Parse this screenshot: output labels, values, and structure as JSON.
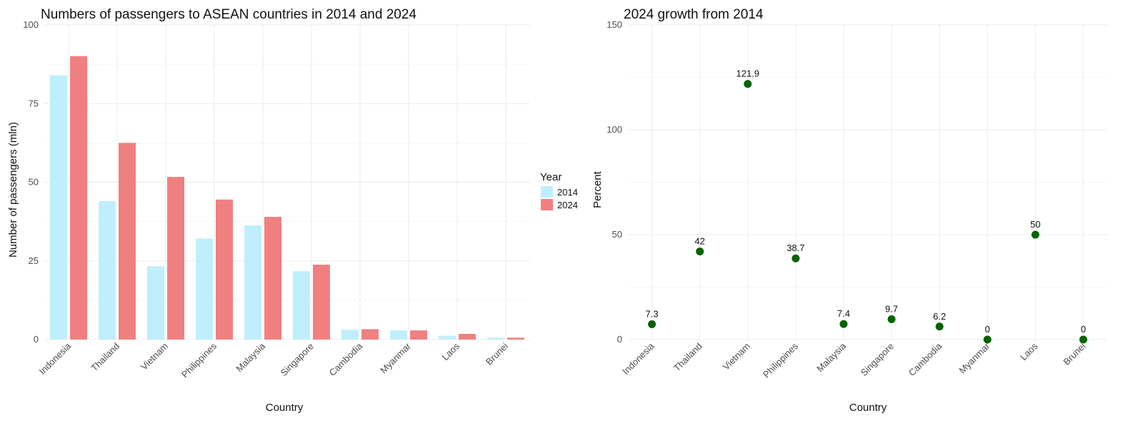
{
  "chart_data": [
    {
      "type": "bar",
      "title": "Numbers of passengers to ASEAN countries in 2014 and 2024",
      "xlabel": "Country",
      "ylabel": "Number of passengers (mln)",
      "categories": [
        "Indonesia",
        "Thailand",
        "Vietnam",
        "Philippines",
        "Malaysia",
        "Singapore",
        "Cambodia",
        "Myanmar",
        "Laos",
        "Brunei"
      ],
      "series": [
        {
          "name": "2014",
          "color": "#bfeefd",
          "values": [
            84,
            44,
            23.3,
            32.1,
            36.3,
            21.7,
            3.1,
            2.9,
            1.2,
            0.6
          ]
        },
        {
          "name": "2024",
          "color": "#f08080",
          "values": [
            90.1,
            62.5,
            51.7,
            44.5,
            39,
            23.8,
            3.3,
            2.9,
            1.8,
            0.6
          ]
        }
      ],
      "ylim": [
        0,
        100
      ],
      "yticks": [
        0,
        25,
        50,
        75,
        100
      ],
      "grid": true,
      "legend": {
        "title": "Year",
        "position": "right"
      }
    },
    {
      "type": "scatter",
      "title": "2024 growth from 2014",
      "xlabel": "Country",
      "ylabel": "Percent",
      "categories": [
        "Indonesia",
        "Thailand",
        "Vietnam",
        "Philippines",
        "Malaysia",
        "Singapore",
        "Cambodia",
        "Myanmar",
        "Laos",
        "Brunei"
      ],
      "values": [
        7.3,
        42,
        121.9,
        38.7,
        7.4,
        9.7,
        6.2,
        0,
        50,
        0
      ],
      "labels": [
        "7.3",
        "42",
        "121.9",
        "38.7",
        "7.4",
        "9.7",
        "6.2",
        "0",
        "50",
        "0"
      ],
      "point_color": "#006400",
      "ylim": [
        0,
        150
      ],
      "yticks": [
        0,
        50,
        100,
        150
      ],
      "grid": true
    }
  ]
}
